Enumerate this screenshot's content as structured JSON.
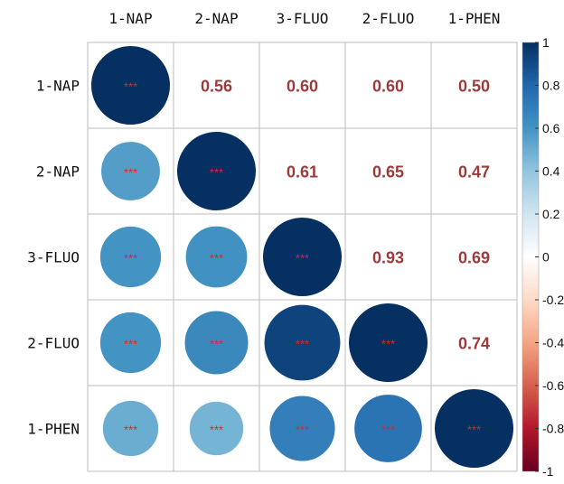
{
  "chart_data": {
    "type": "heatmap",
    "variables": [
      "1-NAP",
      "2-NAP",
      "3-FLUO",
      "2-FLUO",
      "1-PHEN"
    ],
    "matrix": [
      [
        1.0,
        0.56,
        0.6,
        0.6,
        0.5
      ],
      [
        0.56,
        1.0,
        0.61,
        0.65,
        0.47
      ],
      [
        0.6,
        0.61,
        1.0,
        0.93,
        0.69
      ],
      [
        0.6,
        0.65,
        0.93,
        1.0,
        0.74
      ],
      [
        0.5,
        0.47,
        0.69,
        0.74,
        1.0
      ]
    ],
    "upper_labels": [
      [
        null,
        "0.56",
        "0.60",
        "0.60",
        "0.50"
      ],
      [
        null,
        null,
        "0.61",
        "0.65",
        "0.47"
      ],
      [
        null,
        null,
        null,
        "0.93",
        "0.69"
      ],
      [
        null,
        null,
        null,
        null,
        "0.74"
      ],
      [
        null,
        null,
        null,
        null,
        null
      ]
    ],
    "significance_label": "***",
    "legend": {
      "ticks": [
        "1",
        "0.8",
        "0.6",
        "0.4",
        "0.2",
        "0",
        "-0.2",
        "-0.4",
        "-0.6",
        "-0.8",
        "-1"
      ],
      "tick_values": [
        1,
        0.8,
        0.6,
        0.4,
        0.2,
        0,
        -0.2,
        -0.4,
        -0.6,
        -0.8,
        -1
      ],
      "range": [
        -1,
        1
      ],
      "placement": "right"
    },
    "colors": {
      "text": "#9C3B3B",
      "stars": "#E8202A",
      "grid": "#bdbdbd"
    },
    "xlim": [
      -1,
      1
    ]
  }
}
